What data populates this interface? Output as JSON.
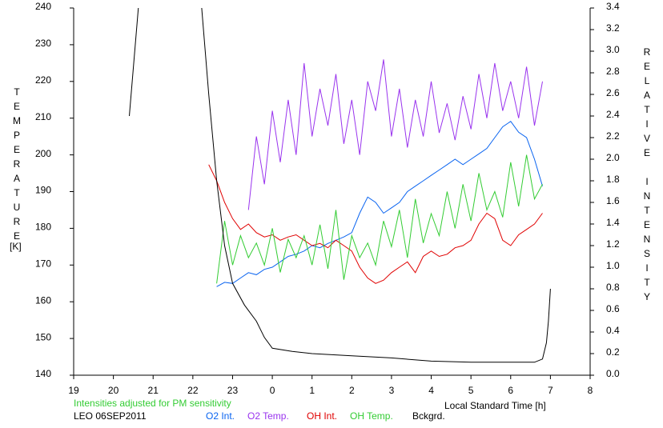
{
  "chart_data": {
    "type": "line",
    "y_label": "TEMPERATURE",
    "y_unit": "[K]",
    "y2_label": "RELATIVE INTENSITY",
    "x_label": "Local Standard Time [h]",
    "note": "Intensities adjusted for PM sensitivity",
    "station": "LEO 06SEP2011",
    "xlim": [
      19,
      32
    ],
    "xticks": [
      19,
      20,
      21,
      22,
      23,
      {
        "value": 24,
        "label": "0"
      },
      {
        "value": 25,
        "label": "1"
      },
      {
        "value": 26,
        "label": "2"
      },
      {
        "value": 27,
        "label": "3"
      },
      {
        "value": 28,
        "label": "4"
      },
      {
        "value": 29,
        "label": "5"
      },
      {
        "value": 30,
        "label": "6"
      },
      {
        "value": 31,
        "label": "7"
      },
      {
        "value": 32,
        "label": "8"
      }
    ],
    "ylim": [
      140,
      240
    ],
    "yticks": [
      140,
      150,
      160,
      170,
      180,
      190,
      200,
      210,
      220,
      230,
      240
    ],
    "y2lim": [
      0,
      3.4
    ],
    "y2ticks": [
      {
        "value": 0,
        "label": "0.0"
      },
      0.2,
      0.4,
      0.6,
      0.8,
      {
        "value": 1,
        "label": "1.0"
      },
      1.2,
      1.4,
      1.6,
      1.8,
      {
        "value": 2,
        "label": "2.0"
      },
      2.2,
      2.4,
      2.6,
      2.8,
      {
        "value": 3,
        "label": "3.0"
      },
      3.2,
      3.4
    ],
    "series": [
      {
        "name": "O2 Int.",
        "color": "#0a64f0",
        "axis": "y2",
        "x": [
          22.6,
          22.8,
          23.0,
          23.2,
          23.4,
          23.6,
          23.8,
          24.0,
          24.2,
          24.4,
          24.6,
          24.8,
          25.0,
          25.2,
          25.4,
          25.6,
          25.8,
          26.0,
          26.2,
          26.4,
          26.6,
          26.8,
          27.0,
          27.2,
          27.4,
          27.6,
          27.8,
          28.0,
          28.2,
          28.4,
          28.6,
          28.8,
          29.0,
          29.2,
          29.4,
          29.6,
          29.8,
          30.0,
          30.2,
          30.4,
          30.6,
          30.8
        ],
        "values": [
          0.82,
          0.86,
          0.85,
          0.9,
          0.95,
          0.93,
          0.98,
          1.0,
          1.05,
          1.1,
          1.12,
          1.15,
          1.2,
          1.18,
          1.22,
          1.25,
          1.28,
          1.32,
          1.5,
          1.65,
          1.6,
          1.5,
          1.55,
          1.6,
          1.7,
          1.75,
          1.8,
          1.85,
          1.9,
          1.95,
          2.0,
          1.95,
          2.0,
          2.05,
          2.1,
          2.2,
          2.3,
          2.35,
          2.25,
          2.2,
          2.0,
          1.75
        ]
      },
      {
        "name": "O2 Temp.",
        "color": "#9933ee",
        "axis": "y",
        "x": [
          23.4,
          23.6,
          23.8,
          24.0,
          24.2,
          24.4,
          24.6,
          24.8,
          25.0,
          25.2,
          25.4,
          25.6,
          25.8,
          26.0,
          26.2,
          26.4,
          26.6,
          26.8,
          27.0,
          27.2,
          27.4,
          27.6,
          27.8,
          28.0,
          28.2,
          28.4,
          28.6,
          28.8,
          29.0,
          29.2,
          29.4,
          29.6,
          29.8,
          30.0,
          30.2,
          30.4,
          30.6,
          30.8
        ],
        "values": [
          185,
          205,
          192,
          212,
          198,
          215,
          200,
          225,
          205,
          218,
          208,
          222,
          203,
          215,
          200,
          220,
          212,
          226,
          205,
          218,
          202,
          215,
          205,
          220,
          206,
          214,
          204,
          216,
          207,
          222,
          210,
          225,
          212,
          220,
          210,
          224,
          208,
          220
        ]
      },
      {
        "name": "OH Int.",
        "color": "#e00000",
        "axis": "y2",
        "x": [
          22.4,
          22.6,
          22.8,
          23.0,
          23.2,
          23.4,
          23.6,
          23.8,
          24.0,
          24.2,
          24.4,
          24.6,
          24.8,
          25.0,
          25.2,
          25.4,
          25.6,
          25.8,
          26.0,
          26.2,
          26.4,
          26.6,
          26.8,
          27.0,
          27.2,
          27.4,
          27.6,
          27.8,
          28.0,
          28.2,
          28.4,
          28.6,
          28.8,
          29.0,
          29.2,
          29.4,
          29.6,
          29.8,
          30.0,
          30.2,
          30.4,
          30.6,
          30.8
        ],
        "values": [
          1.95,
          1.8,
          1.6,
          1.45,
          1.35,
          1.4,
          1.32,
          1.28,
          1.3,
          1.25,
          1.28,
          1.3,
          1.25,
          1.2,
          1.22,
          1.18,
          1.25,
          1.2,
          1.15,
          1.0,
          0.9,
          0.85,
          0.88,
          0.95,
          1.0,
          1.05,
          0.95,
          1.1,
          1.15,
          1.1,
          1.12,
          1.18,
          1.2,
          1.25,
          1.4,
          1.5,
          1.45,
          1.25,
          1.2,
          1.3,
          1.35,
          1.4,
          1.5
        ]
      },
      {
        "name": "OH Temp.",
        "color": "#33cc33",
        "axis": "y",
        "x": [
          22.6,
          22.8,
          23.0,
          23.2,
          23.4,
          23.6,
          23.8,
          24.0,
          24.2,
          24.4,
          24.6,
          24.8,
          25.0,
          25.2,
          25.4,
          25.6,
          25.8,
          26.0,
          26.2,
          26.4,
          26.6,
          26.8,
          27.0,
          27.2,
          27.4,
          27.6,
          27.8,
          28.0,
          28.2,
          28.4,
          28.6,
          28.8,
          29.0,
          29.2,
          29.4,
          29.6,
          29.8,
          30.0,
          30.2,
          30.4,
          30.6,
          30.8
        ],
        "values": [
          165,
          182,
          170,
          178,
          172,
          176,
          170,
          180,
          168,
          177,
          172,
          178,
          170,
          181,
          169,
          185,
          166,
          178,
          172,
          176,
          170,
          182,
          175,
          185,
          172,
          188,
          176,
          184,
          178,
          190,
          180,
          192,
          182,
          195,
          185,
          190,
          183,
          198,
          186,
          200,
          188,
          192
        ]
      },
      {
        "name": "Bckgrd.",
        "color": "#000000",
        "axis": "y2",
        "x": [
          20.4,
          20.65,
          22.2,
          22.4,
          22.6,
          22.8,
          23.0,
          23.3,
          23.6,
          23.8,
          24.0,
          24.5,
          25,
          26,
          27,
          28,
          29,
          30,
          30.6,
          30.8,
          30.9,
          30.95,
          31.0
        ],
        "values": [
          2.4,
          3.5,
          3.5,
          2.6,
          1.8,
          1.2,
          0.85,
          0.65,
          0.5,
          0.35,
          0.25,
          0.22,
          0.2,
          0.18,
          0.16,
          0.13,
          0.12,
          0.12,
          0.12,
          0.15,
          0.3,
          0.5,
          0.8
        ]
      }
    ]
  }
}
